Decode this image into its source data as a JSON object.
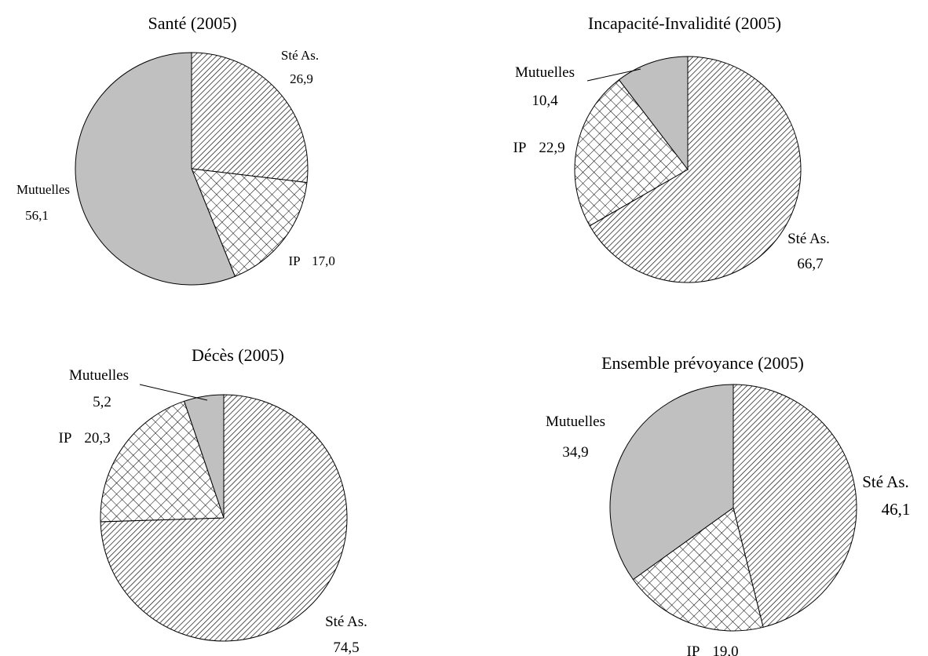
{
  "chart_data": [
    {
      "type": "pie",
      "title": "Santé (2005)",
      "slices": [
        {
          "label": "Sté As.",
          "value": 26.9,
          "value_text": "26,9",
          "pattern": "hatch"
        },
        {
          "label": "IP",
          "value": 17.0,
          "value_text": "17,0",
          "pattern": "crosshatch"
        },
        {
          "label": "Mutuelles",
          "value": 56.1,
          "value_text": "56,1",
          "pattern": "solid"
        }
      ]
    },
    {
      "type": "pie",
      "title": "Incapacité-Invalidité (2005)",
      "slices": [
        {
          "label": "Sté As.",
          "value": 66.7,
          "value_text": "66,7",
          "pattern": "hatch"
        },
        {
          "label": "IP",
          "value": 22.9,
          "value_text": "22,9",
          "pattern": "crosshatch"
        },
        {
          "label": "Mutuelles",
          "value": 10.4,
          "value_text": "10,4",
          "pattern": "solid"
        }
      ]
    },
    {
      "type": "pie",
      "title": "Décès (2005)",
      "slices": [
        {
          "label": "Sté As.",
          "value": 74.5,
          "value_text": "74,5",
          "pattern": "hatch"
        },
        {
          "label": "IP",
          "value": 20.3,
          "value_text": "20,3",
          "pattern": "crosshatch"
        },
        {
          "label": "Mutuelles",
          "value": 5.2,
          "value_text": "5,2",
          "pattern": "solid"
        }
      ]
    },
    {
      "type": "pie",
      "title": "Ensemble prévoyance (2005)",
      "slices": [
        {
          "label": "Sté As.",
          "value": 46.1,
          "value_text": "46,1",
          "pattern": "hatch"
        },
        {
          "label": "IP",
          "value": 19.0,
          "value_text": "19,0",
          "pattern": "crosshatch"
        },
        {
          "label": "Mutuelles",
          "value": 34.9,
          "value_text": "34,9",
          "pattern": "solid"
        }
      ]
    }
  ],
  "colors": {
    "solid_fill": "#c0c0c0",
    "pattern_ink": "#000000",
    "background": "#ffffff"
  }
}
